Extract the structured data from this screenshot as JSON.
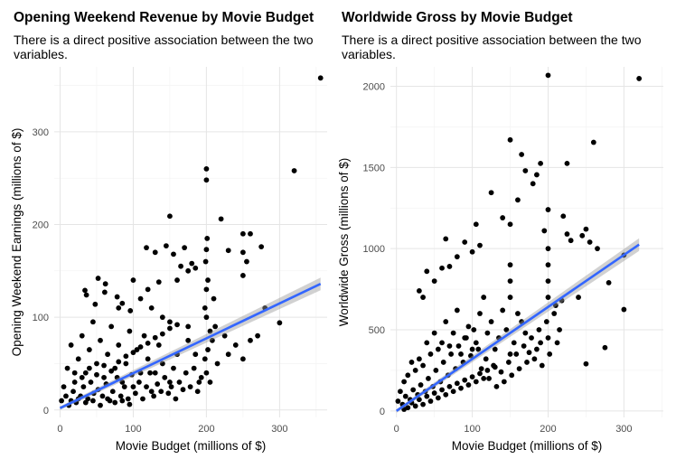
{
  "chart_data": [
    {
      "type": "scatter",
      "title": "Opening Weekend Revenue by Movie Budget",
      "subtitle": "There is a direct positive association between the two variables.",
      "xlabel": "Movie Budget (millions of $)",
      "ylabel": "Opening Weekend Earnings (millions of $)",
      "xlim": [
        -8,
        365
      ],
      "ylim": [
        -8,
        370
      ],
      "xticks": [
        0,
        100,
        200,
        300
      ],
      "xtick_labels": [
        "0",
        "100",
        "200",
        "300"
      ],
      "yticks": [
        0,
        100,
        200,
        300
      ],
      "ytick_labels": [
        "0",
        "100",
        "200",
        "300"
      ],
      "grid": true,
      "trend": {
        "method": "linear",
        "x": [
          0,
          356
        ],
        "y": [
          2,
          136
        ],
        "se_band": true
      },
      "points": [
        [
          356,
          358
        ],
        [
          320,
          258
        ],
        [
          200,
          260
        ],
        [
          200,
          248
        ],
        [
          150,
          209
        ],
        [
          220,
          206
        ],
        [
          250,
          190
        ],
        [
          260,
          190
        ],
        [
          275,
          176
        ],
        [
          250,
          170
        ],
        [
          255,
          160
        ],
        [
          250,
          145
        ],
        [
          230,
          172
        ],
        [
          200,
          173
        ],
        [
          180,
          158
        ],
        [
          175,
          150
        ],
        [
          200,
          130
        ],
        [
          210,
          120
        ],
        [
          300,
          94
        ],
        [
          280,
          110
        ],
        [
          145,
          177
        ],
        [
          155,
          168
        ],
        [
          118,
          175
        ],
        [
          130,
          170
        ],
        [
          170,
          175
        ],
        [
          165,
          155
        ],
        [
          160,
          140
        ],
        [
          185,
          153
        ],
        [
          135,
          138
        ],
        [
          100,
          140
        ],
        [
          52,
          142
        ],
        [
          62,
          136
        ],
        [
          34,
          129
        ],
        [
          36,
          124
        ],
        [
          61,
          127
        ],
        [
          48,
          114
        ],
        [
          78,
          122
        ],
        [
          80,
          110
        ],
        [
          85,
          115
        ],
        [
          96,
          107
        ],
        [
          110,
          120
        ],
        [
          120,
          130
        ],
        [
          125,
          110
        ],
        [
          140,
          100
        ],
        [
          150,
          95
        ],
        [
          175,
          90
        ],
        [
          200,
          100
        ],
        [
          205,
          85
        ],
        [
          225,
          80
        ],
        [
          240,
          70
        ],
        [
          260,
          75
        ],
        [
          250,
          55
        ],
        [
          270,
          80
        ],
        [
          230,
          60
        ],
        [
          200,
          40
        ],
        [
          205,
          30
        ],
        [
          215,
          50
        ],
        [
          190,
          30
        ],
        [
          185,
          60
        ],
        [
          175,
          75
        ],
        [
          160,
          60
        ],
        [
          155,
          45
        ],
        [
          150,
          30
        ],
        [
          140,
          50
        ],
        [
          135,
          70
        ],
        [
          130,
          40
        ],
        [
          125,
          20
        ],
        [
          120,
          55
        ],
        [
          115,
          80
        ],
        [
          110,
          40
        ],
        [
          105,
          65
        ],
        [
          100,
          25
        ],
        [
          95,
          85
        ],
        [
          90,
          50
        ],
        [
          85,
          30
        ],
        [
          80,
          70
        ],
        [
          75,
          45
        ],
        [
          70,
          90
        ],
        [
          65,
          60
        ],
        [
          60,
          35
        ],
        [
          55,
          75
        ],
        [
          50,
          50
        ],
        [
          45,
          95
        ],
        [
          40,
          65
        ],
        [
          35,
          40
        ],
        [
          30,
          80
        ],
        [
          25,
          55
        ],
        [
          20,
          30
        ],
        [
          15,
          70
        ],
        [
          10,
          45
        ],
        [
          5,
          25
        ],
        [
          2,
          10
        ],
        [
          8,
          15
        ],
        [
          12,
          5
        ],
        [
          18,
          20
        ],
        [
          22,
          8
        ],
        [
          28,
          15
        ],
        [
          32,
          25
        ],
        [
          38,
          12
        ],
        [
          42,
          30
        ],
        [
          46,
          18
        ],
        [
          52,
          22
        ],
        [
          58,
          15
        ],
        [
          63,
          28
        ],
        [
          68,
          10
        ],
        [
          72,
          20
        ],
        [
          78,
          35
        ],
        [
          83,
          15
        ],
        [
          88,
          25
        ],
        [
          93,
          12
        ],
        [
          98,
          38
        ],
        [
          103,
          18
        ],
        [
          108,
          30
        ],
        [
          113,
          12
        ],
        [
          118,
          25
        ],
        [
          123,
          40
        ],
        [
          128,
          15
        ],
        [
          133,
          28
        ],
        [
          138,
          20
        ],
        [
          143,
          35
        ],
        [
          148,
          18
        ],
        [
          152,
          25
        ],
        [
          158,
          12
        ],
        [
          163,
          30
        ],
        [
          168,
          22
        ],
        [
          172,
          40
        ],
        [
          178,
          25
        ],
        [
          183,
          45
        ],
        [
          188,
          20
        ],
        [
          193,
          35
        ],
        [
          198,
          55
        ],
        [
          202,
          65
        ],
        [
          208,
          75
        ],
        [
          212,
          90
        ],
        [
          198,
          110
        ],
        [
          202,
          140
        ],
        [
          199,
          160
        ],
        [
          201,
          185
        ],
        [
          15,
          10
        ],
        [
          25,
          12
        ],
        [
          35,
          8
        ],
        [
          45,
          10
        ],
        [
          55,
          5
        ],
        [
          65,
          12
        ],
        [
          75,
          8
        ],
        [
          85,
          10
        ],
        [
          95,
          6
        ],
        [
          20,
          40
        ],
        [
          30,
          35
        ],
        [
          40,
          45
        ],
        [
          50,
          38
        ],
        [
          60,
          48
        ],
        [
          70,
          42
        ],
        [
          80,
          52
        ],
        [
          90,
          58
        ],
        [
          100,
          62
        ],
        [
          110,
          68
        ],
        [
          120,
          72
        ],
        [
          130,
          78
        ],
        [
          140,
          82
        ],
        [
          150,
          88
        ],
        [
          160,
          92
        ]
      ]
    },
    {
      "type": "scatter",
      "title": "Worldwide Gross by Movie Budget",
      "subtitle": "There is a direct positive association between the two variables.",
      "xlabel": "Movie Budget (millions of $)",
      "ylabel": "Worldwide Gross (millions of $)",
      "xlim": [
        -8,
        352
      ],
      "ylim": [
        -40,
        2120
      ],
      "xticks": [
        0,
        100,
        200,
        300
      ],
      "xtick_labels": [
        "0",
        "100",
        "200",
        "300"
      ],
      "yticks": [
        0,
        500,
        1000,
        1500,
        2000
      ],
      "ytick_labels": [
        "0",
        "500",
        "1000",
        "1500",
        "2000"
      ],
      "grid": true,
      "trend": {
        "method": "linear",
        "x": [
          0,
          320
        ],
        "y": [
          0,
          1025
        ],
        "se_band": true
      },
      "points": [
        [
          320,
          2048
        ],
        [
          200,
          2068
        ],
        [
          150,
          1670
        ],
        [
          165,
          1580
        ],
        [
          190,
          1525
        ],
        [
          170,
          1480
        ],
        [
          225,
          1525
        ],
        [
          260,
          1655
        ],
        [
          185,
          1455
        ],
        [
          180,
          1400
        ],
        [
          160,
          1300
        ],
        [
          125,
          1345
        ],
        [
          140,
          1190
        ],
        [
          150,
          1150
        ],
        [
          200,
          1240
        ],
        [
          220,
          1200
        ],
        [
          250,
          1120
        ],
        [
          245,
          1080
        ],
        [
          255,
          1040
        ],
        [
          265,
          1000
        ],
        [
          195,
          1110
        ],
        [
          225,
          1090
        ],
        [
          230,
          1050
        ],
        [
          200,
          1000
        ],
        [
          105,
          1150
        ],
        [
          110,
          1020
        ],
        [
          100,
          980
        ],
        [
          80,
          950
        ],
        [
          65,
          1060
        ],
        [
          90,
          1040
        ],
        [
          70,
          890
        ],
        [
          60,
          880
        ],
        [
          40,
          860
        ],
        [
          50,
          800
        ],
        [
          30,
          740
        ],
        [
          35,
          700
        ],
        [
          300,
          960
        ],
        [
          300,
          625
        ],
        [
          275,
          390
        ],
        [
          280,
          790
        ],
        [
          250,
          290
        ],
        [
          240,
          700
        ],
        [
          210,
          650
        ],
        [
          215,
          500
        ],
        [
          200,
          450
        ],
        [
          190,
          420
        ],
        [
          185,
          380
        ],
        [
          175,
          360
        ],
        [
          170,
          480
        ],
        [
          165,
          550
        ],
        [
          160,
          600
        ],
        [
          155,
          420
        ],
        [
          150,
          350
        ],
        [
          145,
          500
        ],
        [
          140,
          620
        ],
        [
          135,
          450
        ],
        [
          130,
          380
        ],
        [
          125,
          550
        ],
        [
          120,
          480
        ],
        [
          115,
          700
        ],
        [
          110,
          600
        ],
        [
          105,
          420
        ],
        [
          100,
          380
        ],
        [
          95,
          520
        ],
        [
          90,
          450
        ],
        [
          85,
          350
        ],
        [
          80,
          620
        ],
        [
          75,
          480
        ],
        [
          70,
          400
        ],
        [
          65,
          550
        ],
        [
          60,
          420
        ],
        [
          55,
          380
        ],
        [
          50,
          480
        ],
        [
          45,
          350
        ],
        [
          40,
          420
        ],
        [
          35,
          280
        ],
        [
          30,
          320
        ],
        [
          25,
          250
        ],
        [
          20,
          300
        ],
        [
          15,
          220
        ],
        [
          10,
          180
        ],
        [
          5,
          120
        ],
        [
          2,
          60
        ],
        [
          8,
          40
        ],
        [
          12,
          90
        ],
        [
          18,
          70
        ],
        [
          22,
          130
        ],
        [
          28,
          100
        ],
        [
          32,
          160
        ],
        [
          38,
          120
        ],
        [
          42,
          200
        ],
        [
          48,
          150
        ],
        [
          52,
          250
        ],
        [
          58,
          180
        ],
        [
          62,
          300
        ],
        [
          68,
          220
        ],
        [
          72,
          350
        ],
        [
          78,
          260
        ],
        [
          82,
          400
        ],
        [
          88,
          300
        ],
        [
          92,
          450
        ],
        [
          98,
          340
        ],
        [
          102,
          500
        ],
        [
          108,
          380
        ],
        [
          112,
          260
        ],
        [
          118,
          320
        ],
        [
          122,
          200
        ],
        [
          128,
          280
        ],
        [
          132,
          150
        ],
        [
          138,
          240
        ],
        [
          142,
          180
        ],
        [
          148,
          300
        ],
        [
          152,
          220
        ],
        [
          158,
          350
        ],
        [
          162,
          260
        ],
        [
          168,
          400
        ],
        [
          172,
          300
        ],
        [
          178,
          450
        ],
        [
          182,
          320
        ],
        [
          188,
          500
        ],
        [
          192,
          280
        ],
        [
          198,
          550
        ],
        [
          202,
          350
        ],
        [
          208,
          600
        ],
        [
          212,
          420
        ],
        [
          218,
          680
        ],
        [
          15,
          20
        ],
        [
          25,
          30
        ],
        [
          35,
          40
        ],
        [
          45,
          60
        ],
        [
          55,
          80
        ],
        [
          65,
          100
        ],
        [
          75,
          120
        ],
        [
          85,
          140
        ],
        [
          95,
          160
        ],
        [
          105,
          180
        ],
        [
          115,
          200
        ],
        [
          10,
          10
        ],
        [
          20,
          50
        ],
        [
          30,
          70
        ],
        [
          40,
          90
        ],
        [
          50,
          110
        ],
        [
          60,
          130
        ],
        [
          70,
          150
        ],
        [
          80,
          170
        ],
        [
          90,
          190
        ],
        [
          100,
          210
        ],
        [
          110,
          230
        ],
        [
          120,
          250
        ],
        [
          130,
          270
        ],
        [
          150,
          700
        ],
        [
          150,
          800
        ],
        [
          150,
          900
        ],
        [
          200,
          800
        ],
        [
          200,
          700
        ],
        [
          200,
          900
        ]
      ]
    }
  ]
}
